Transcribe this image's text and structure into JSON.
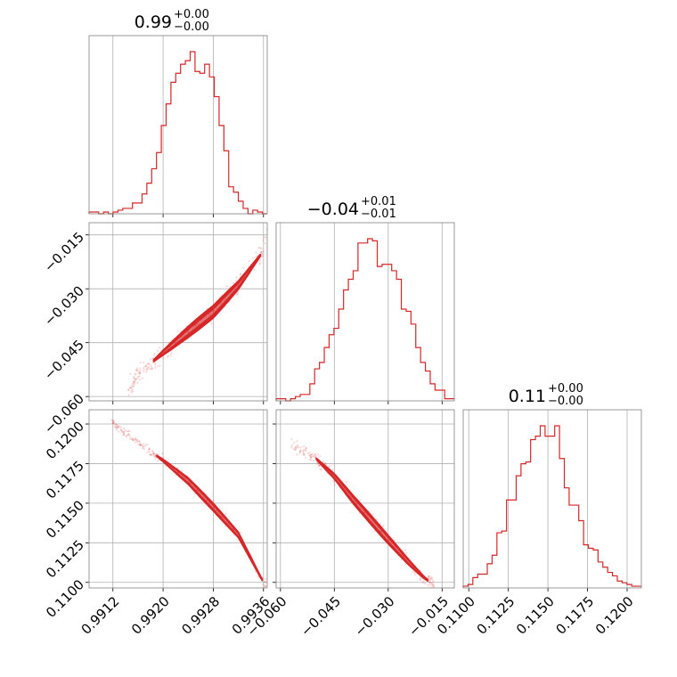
{
  "chart_data": {
    "type": "corner",
    "parameters": [
      {
        "title": {
          "value": "0.99",
          "upper": "+0.00",
          "lower": "−0.00"
        },
        "range": [
          0.99082,
          0.99366
        ],
        "ticks": [
          {
            "value": 0.9912,
            "label": "0.9912"
          },
          {
            "value": 0.992,
            "label": "0.9920"
          },
          {
            "value": 0.9928,
            "label": "0.9928"
          },
          {
            "value": 0.9936,
            "label": "0.9936"
          }
        ]
      },
      {
        "title": {
          "value": "−0.04",
          "upper": "+0.01",
          "lower": "−0.01"
        },
        "range": [
          -0.0612,
          -0.0116
        ],
        "ticks": [
          {
            "value": -0.06,
            "label": "−0.060"
          },
          {
            "value": -0.045,
            "label": "−0.045"
          },
          {
            "value": -0.03,
            "label": "−0.030"
          },
          {
            "value": -0.015,
            "label": "−0.015"
          }
        ]
      },
      {
        "title": {
          "value": "0.11",
          "upper": "+0.00",
          "lower": "−0.00"
        },
        "range": [
          0.10965,
          0.1209
        ],
        "ticks": [
          {
            "value": 0.11,
            "label": "0.1100"
          },
          {
            "value": 0.1125,
            "label": "0.1125"
          },
          {
            "value": 0.115,
            "label": "0.1150"
          },
          {
            "value": 0.1175,
            "label": "0.1175"
          },
          {
            "value": 0.12,
            "label": "0.1200"
          }
        ]
      }
    ],
    "histograms": [
      [
        1,
        1,
        0,
        1,
        0,
        1,
        2,
        3,
        3,
        6,
        6,
        11,
        17,
        25,
        34,
        49,
        61,
        73,
        78,
        83,
        85,
        90,
        79,
        78,
        83,
        76,
        65,
        49,
        35,
        15,
        12,
        7,
        3,
        0,
        2,
        1,
        0
      ],
      [
        1,
        1,
        0,
        1,
        2,
        3,
        3,
        8,
        15,
        18,
        25,
        31,
        34,
        43,
        52,
        57,
        61,
        74,
        74,
        76,
        75,
        63,
        64,
        64,
        61,
        57,
        43,
        42,
        36,
        25,
        18,
        14,
        8,
        5,
        5,
        1,
        1
      ],
      [
        1,
        2,
        6,
        8,
        8,
        14,
        19,
        32,
        33,
        51,
        51,
        65,
        72,
        73,
        86,
        88,
        94,
        88,
        88,
        94,
        75,
        58,
        48,
        48,
        39,
        25,
        23,
        22,
        15,
        12,
        9,
        7,
        4,
        3,
        2,
        1,
        1
      ]
    ],
    "pairs": [
      {
        "x": 0,
        "y": 1,
        "ridge": [
          [
            0.99145,
            -0.0585
          ],
          [
            0.9916,
            -0.0537
          ],
          [
            0.992,
            -0.0478
          ],
          [
            0.9924,
            -0.042
          ],
          [
            0.9928,
            -0.0364
          ],
          [
            0.9932,
            -0.029
          ],
          [
            0.9936,
            -0.0195
          ],
          [
            0.99366,
            -0.013
          ]
        ],
        "core": [
          0.99185,
          0.99355
        ],
        "width": 0.0028
      },
      {
        "x": 0,
        "y": 2,
        "ridge": [
          [
            0.99118,
            0.12015
          ],
          [
            0.99145,
            0.11925
          ],
          [
            0.992,
            0.1177
          ],
          [
            0.9924,
            0.1164
          ],
          [
            0.9928,
            0.11475
          ],
          [
            0.9932,
            0.113
          ],
          [
            0.9936,
            0.11
          ],
          [
            0.99366,
            0.10975
          ]
        ],
        "core": [
          0.9919,
          0.99358
        ],
        "width": 0.00032
      },
      {
        "x": 1,
        "y": 2,
        "ridge": [
          [
            -0.057,
            0.1187
          ],
          [
            -0.05,
            0.1178
          ],
          [
            -0.045,
            0.1167
          ],
          [
            -0.04,
            0.1153
          ],
          [
            -0.035,
            0.114
          ],
          [
            -0.03,
            0.1127
          ],
          [
            -0.024,
            0.1112
          ],
          [
            -0.02,
            0.1103
          ],
          [
            -0.017,
            0.1098
          ]
        ],
        "core": [
          -0.05,
          -0.019
        ],
        "width": 0.00042
      }
    ],
    "colors": {
      "line": "#d62728",
      "axis": "#808080",
      "grid": "#b0b0b0"
    },
    "grid": true,
    "tick_rotation_deg": 45
  }
}
